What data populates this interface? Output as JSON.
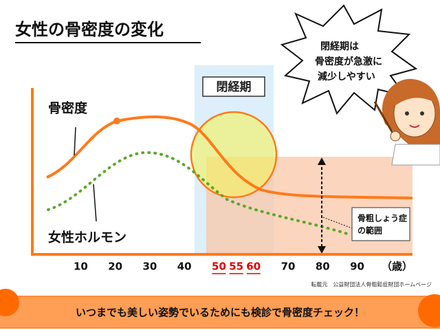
{
  "chart_data": {
    "type": "concept-line",
    "title": "女性の骨密度の変化",
    "callout": [
      "閉経期は",
      "骨密度が急激に",
      "減少しやすい"
    ],
    "band_label": "閉経期",
    "series": [
      {
        "name": "骨密度",
        "color": "#ff7a1a"
      },
      {
        "name": "女性ホルモン",
        "color": "#5aa82a"
      }
    ],
    "range_label": [
      "骨粗しょう症",
      "の範囲"
    ],
    "xlim": [
      -4,
      106
    ],
    "xticks": [
      10,
      20,
      30,
      40,
      50,
      55,
      60,
      70,
      80,
      90
    ],
    "highlighted_ticks": [
      50,
      55,
      60
    ],
    "highlight_color": "#e00000",
    "x_unit": "（歳）",
    "source": "転載元　公益財団法人骨粗鬆症財団ホームページ",
    "banner": "いつまでも美しい姿勢でいるためにも検診で骨密度チェック！"
  }
}
